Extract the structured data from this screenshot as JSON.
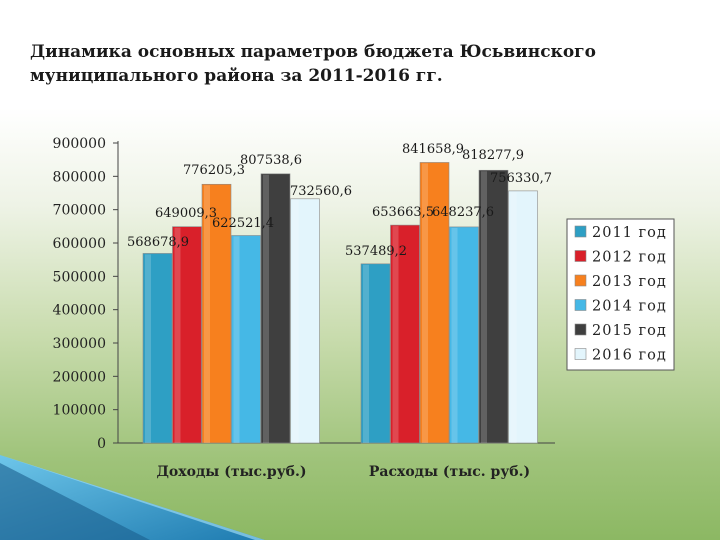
{
  "slide": {
    "title": "Динамика основных параметров бюджета Юсьвинского муниципального района за 2011-2016 гг."
  },
  "chart_data": {
    "type": "bar",
    "categories": [
      "Доходы (тыс.руб.)",
      "Расходы (тыс. руб.)"
    ],
    "series": [
      {
        "name": "2011 год",
        "values": [
          568678.9,
          537489.2
        ],
        "labels": [
          "568678,9",
          "537489,2"
        ],
        "color": "#2e9fc4"
      },
      {
        "name": "2012 год",
        "values": [
          649009.3,
          653663.5
        ],
        "labels": [
          "649009,3",
          "653663,5"
        ],
        "color": "#d9202a"
      },
      {
        "name": "2013 год",
        "values": [
          776205.3,
          841658.9
        ],
        "labels": [
          "776205,3",
          "841658,9"
        ],
        "color": "#f7801e"
      },
      {
        "name": "2014 год",
        "values": [
          622521.4,
          648237.6
        ],
        "labels": [
          "622521,4",
          "648237,6"
        ],
        "color": "#45b8e6"
      },
      {
        "name": "2015 год",
        "values": [
          807538.6,
          818277.9
        ],
        "labels": [
          "807538,6",
          "818277,9"
        ],
        "color": "#3f3f3f"
      },
      {
        "name": "2016 год",
        "values": [
          732560.6,
          756330.7
        ],
        "labels": [
          "732560,6",
          "756330,7"
        ],
        "color": "#e3f5fc"
      }
    ],
    "yticks": [
      "0",
      "100000",
      "200000",
      "300000",
      "400000",
      "500000",
      "600000",
      "700000",
      "800000",
      "900000"
    ],
    "ylim": [
      0,
      900000
    ],
    "grid": false,
    "legend": "right"
  }
}
